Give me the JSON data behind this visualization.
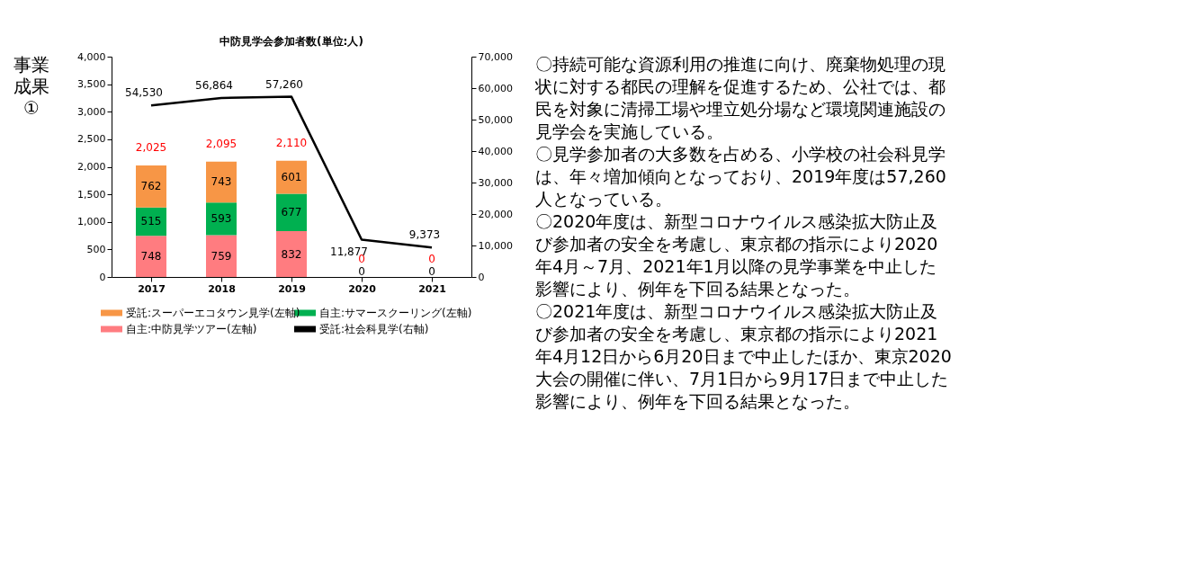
{
  "chart_data": {
    "type": "bar",
    "stacked": true,
    "title": "中防見学会参加者数(単位:人)",
    "categories": [
      "2017",
      "2018",
      "2019",
      "2020",
      "2021"
    ],
    "series": [
      {
        "name": "自主:中防見学ツアー(左軸)",
        "color": "#ff7c80",
        "values": [
          748,
          759,
          832,
          0,
          0
        ],
        "value_labels": [
          "748",
          "759",
          "832",
          "0",
          "0"
        ]
      },
      {
        "name": "自主:サマースクーリング(左軸)",
        "color": "#00b050",
        "values": [
          515,
          593,
          677,
          0,
          0
        ],
        "value_labels": [
          "515",
          "593",
          "677",
          null,
          null
        ]
      },
      {
        "name": "受託:スーパーエコタウン見学(左軸)",
        "color": "#f79646",
        "values": [
          762,
          743,
          601,
          0,
          0
        ],
        "value_labels": [
          "762",
          "743",
          "601",
          null,
          null
        ]
      },
      {
        "name": "受託:社会科見学(右軸)",
        "color": "#000000",
        "type": "line",
        "axis": "y2",
        "line_style": "solid",
        "values": [
          54530,
          56864,
          57260,
          11877,
          9373
        ],
        "value_labels": [
          "54,530",
          "56,864",
          "57,260",
          "11,877",
          "9,373"
        ]
      }
    ],
    "totals": [
      "2,025",
      "2,095",
      "2,110",
      "0",
      "0"
    ],
    "ylim": [
      0,
      4000
    ],
    "yticks": [
      0,
      500,
      {
        "value": 1000,
        "label": "1,000"
      },
      {
        "value": 1500,
        "label": "1,500"
      },
      {
        "value": 2000,
        "label": "2,000"
      },
      {
        "value": 2500,
        "label": "2,500"
      },
      {
        "value": 3000,
        "label": "3,000"
      },
      {
        "value": 3500,
        "label": "3,500"
      },
      {
        "value": 4000,
        "label": "4,000"
      }
    ],
    "y2lim": [
      0,
      70000
    ],
    "y2ticks": [
      0,
      {
        "value": 10000,
        "label": "10,000"
      },
      {
        "value": 20000,
        "label": "20,000"
      },
      {
        "value": 30000,
        "label": "30,000"
      },
      {
        "value": 40000,
        "label": "40,000"
      },
      {
        "value": 50000,
        "label": "50,000"
      },
      {
        "value": 60000,
        "label": "60,000"
      },
      {
        "value": 70000,
        "label": "70,000"
      }
    ],
    "grid": false,
    "legend": "bottom",
    "marker": "none",
    "annotations": [
      "事業成果①",
      "〇持続可能な資源利用の推進に向け、廃棄物処理の現状に対する都民の理解を促進するため、公社では、都民を対象に清掃工場や埋立処分場など環境関連施設の見学会を実施している。",
      "〇見学参加者の大多数を占める、小学校の社会科見学は、年々増加傾向となっており、2019年度は57,260人となっている。",
      "〇2020年度は、新型コロナウイルス感染拡大防止及び参加者の安全を考慮し、東京都の指示により2020年4月～7月、2021年1月以降の見学事業を中止した影響により、例年を下回る結果となった。",
      "〇2021年度は、新型コロナウイルス感染拡大防止及び参加者の安全を考慮し、東京都の指示により2021年4月12日から6月20日まで中止したほか、東京2020大会の開催に伴い、7月1日から9月17日まで中止した影響により、例年を下回る結果となった。"
    ]
  }
}
